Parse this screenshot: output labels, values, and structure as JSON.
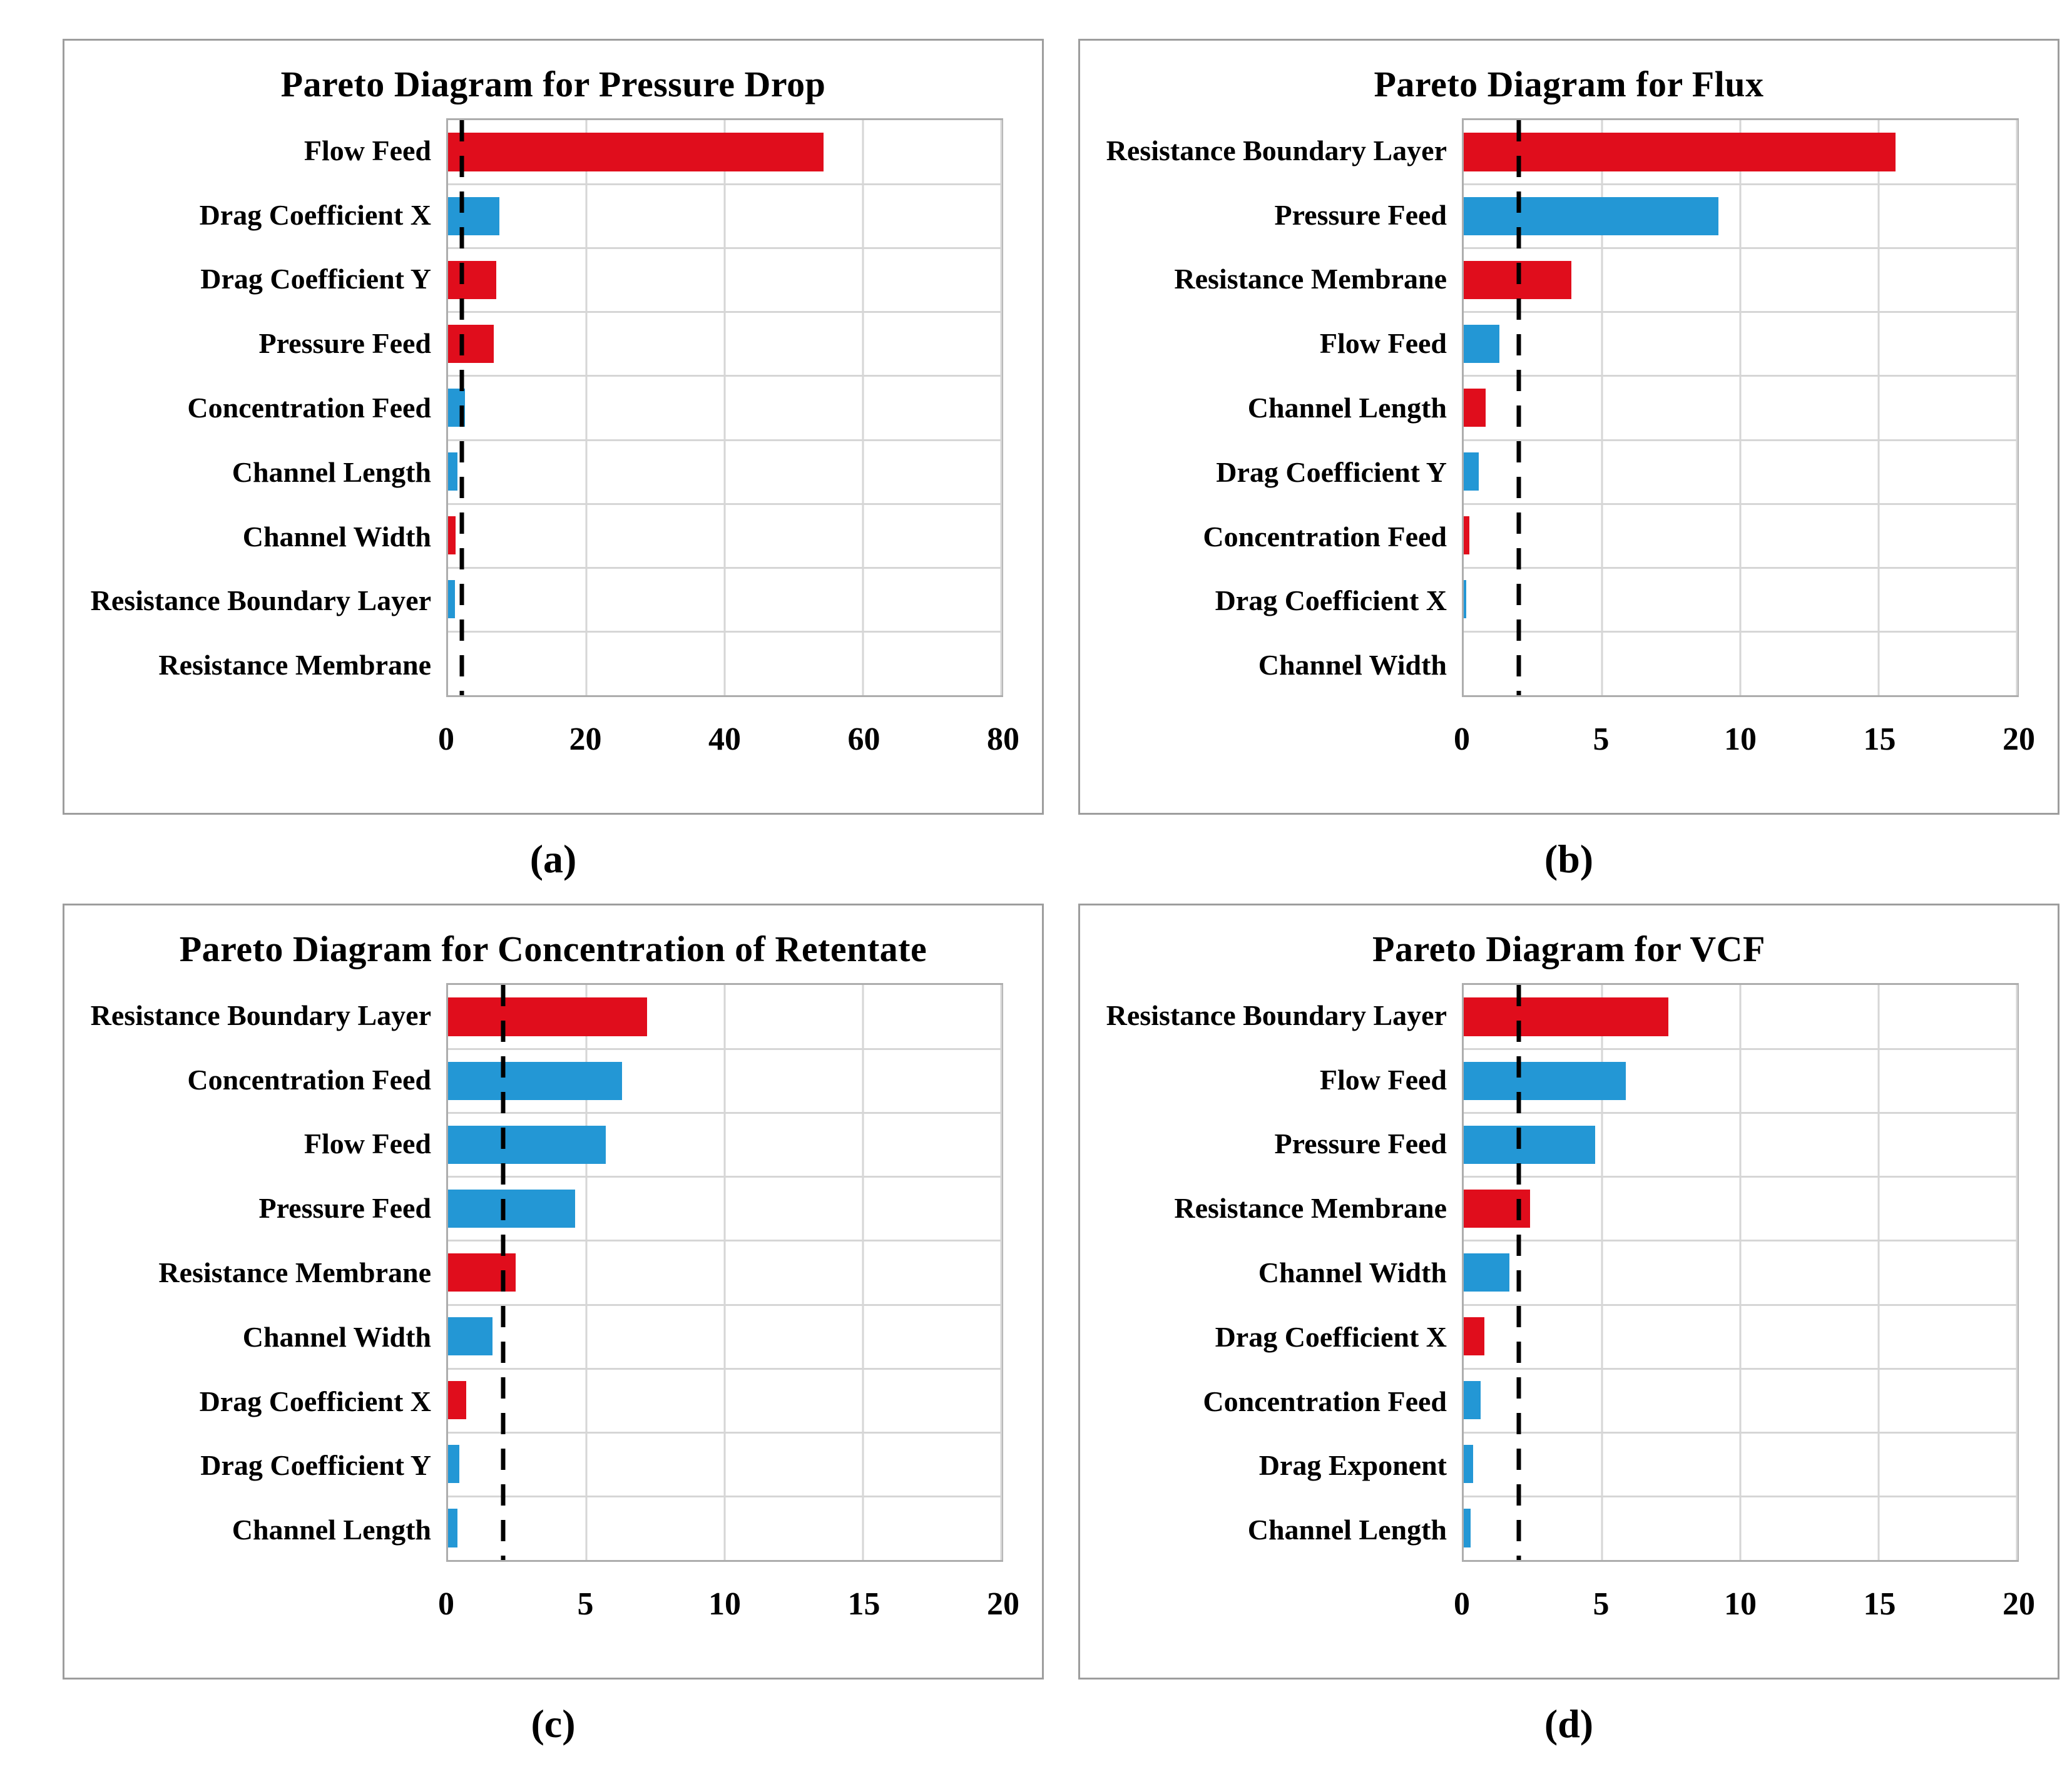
{
  "palette": {
    "red": "#e00d1c",
    "blue": "#2397d5",
    "grid": "#d6d6d6",
    "plot_border": "#adadad",
    "panel_border": "#9d9d9d",
    "threshold_line": "#000000"
  },
  "chart_data": [
    {
      "type": "bar",
      "orientation": "horizontal",
      "title": "Pareto Diagram for Pressure Drop",
      "caption": "(a)",
      "categories": [
        "Flow Feed",
        "Drag Coefficient X",
        "Drag Coefficient Y",
        "Pressure Feed",
        "Concentration Feed",
        "Channel Length",
        "Channel Width",
        "Resistance Boundary Layer",
        "Resistance Membrane"
      ],
      "values": [
        54.3,
        7.4,
        7.0,
        6.6,
        2.4,
        1.4,
        1.1,
        1.0,
        0.0
      ],
      "colors": [
        "red",
        "blue",
        "red",
        "red",
        "blue",
        "blue",
        "red",
        "blue",
        "red"
      ],
      "xticks": [
        0,
        20,
        40,
        60,
        80
      ],
      "xlim": [
        0,
        80
      ],
      "threshold": 2,
      "grid": true,
      "legend": "none"
    },
    {
      "type": "bar",
      "orientation": "horizontal",
      "title": "Pareto Diagram for Flux",
      "caption": "(b)",
      "categories": [
        "Resistance Boundary Layer",
        "Pressure Feed",
        "Resistance Membrane",
        "Flow Feed",
        "Channel Length",
        "Drag Coefficient Y",
        "Concentration Feed",
        "Drag Coefficient X",
        "Channel Width"
      ],
      "values": [
        15.6,
        9.2,
        3.9,
        1.3,
        0.8,
        0.55,
        0.2,
        0.1,
        0.0
      ],
      "colors": [
        "red",
        "blue",
        "red",
        "blue",
        "red",
        "blue",
        "red",
        "blue",
        "blue"
      ],
      "xticks": [
        0,
        5,
        10,
        15,
        20
      ],
      "xlim": [
        0,
        20
      ],
      "threshold": 2,
      "grid": true,
      "legend": "none"
    },
    {
      "type": "bar",
      "orientation": "horizontal",
      "title": "Pareto Diagram for Concentration of Retentate",
      "caption": "(c)",
      "categories": [
        "Resistance Boundary Layer",
        "Concentration Feed",
        "Flow Feed",
        "Pressure Feed",
        "Resistance Membrane",
        "Channel Width",
        "Drag Coefficient X",
        "Drag Coefficient Y",
        "Channel Length"
      ],
      "values": [
        7.2,
        6.3,
        5.7,
        4.6,
        2.45,
        1.6,
        0.65,
        0.4,
        0.35
      ],
      "colors": [
        "red",
        "blue",
        "blue",
        "blue",
        "red",
        "blue",
        "red",
        "blue",
        "blue"
      ],
      "xticks": [
        0,
        5,
        10,
        15,
        20
      ],
      "xlim": [
        0,
        20
      ],
      "threshold": 2,
      "grid": true,
      "legend": "none"
    },
    {
      "type": "bar",
      "orientation": "horizontal",
      "title": "Pareto Diagram for VCF",
      "caption": "(d)",
      "categories": [
        "Resistance Boundary Layer",
        "Flow Feed",
        "Pressure Feed",
        "Resistance Membrane",
        "Channel Width",
        "Drag Coefficient X",
        "Concentration Feed",
        "Drag Exponent",
        "Channel Length"
      ],
      "values": [
        7.4,
        5.85,
        4.75,
        2.4,
        1.65,
        0.75,
        0.6,
        0.35,
        0.25
      ],
      "colors": [
        "red",
        "blue",
        "blue",
        "red",
        "blue",
        "red",
        "blue",
        "blue",
        "blue"
      ],
      "xticks": [
        0,
        5,
        10,
        15,
        20
      ],
      "xlim": [
        0,
        20
      ],
      "threshold": 2,
      "grid": true,
      "legend": "none"
    }
  ]
}
